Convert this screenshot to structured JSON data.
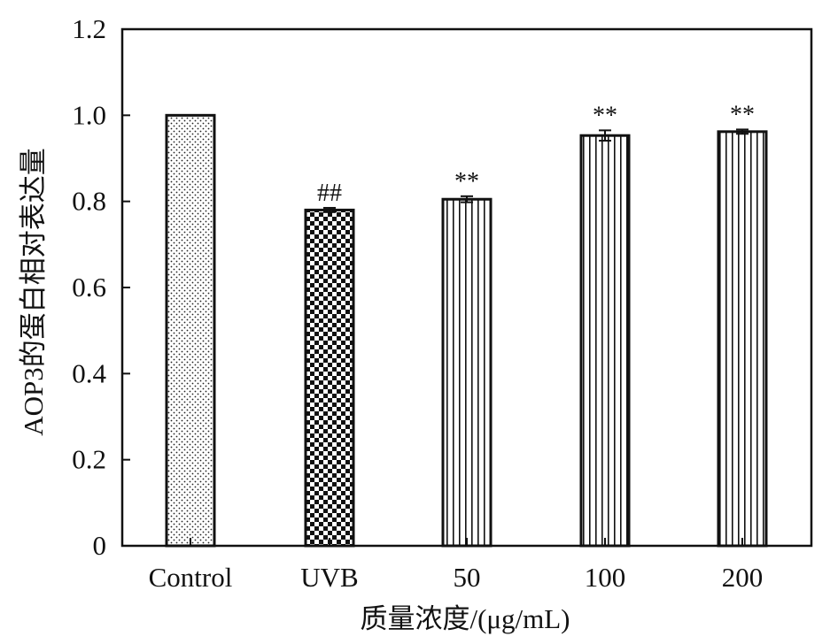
{
  "chart_data": {
    "type": "bar",
    "categories": [
      "Control",
      "UVB",
      "50",
      "100",
      "200"
    ],
    "values": [
      1.0,
      0.78,
      0.805,
      0.953,
      0.962
    ],
    "errors": [
      0,
      0.005,
      0.007,
      0.012,
      0.005
    ],
    "annotations": [
      "",
      "##",
      "**",
      "**",
      "**"
    ],
    "patterns": [
      "dots",
      "checker",
      "vlines",
      "vlines",
      "vlines"
    ],
    "xlabel": "质量浓度/(μg/mL)",
    "ylabel": "AOP3的蛋白相对表达量",
    "ylim": [
      0,
      1.2
    ],
    "yticks": [
      "0",
      "0.2",
      "0.4",
      "0.6",
      "0.8",
      "1.0",
      "1.2"
    ],
    "grid": false
  }
}
